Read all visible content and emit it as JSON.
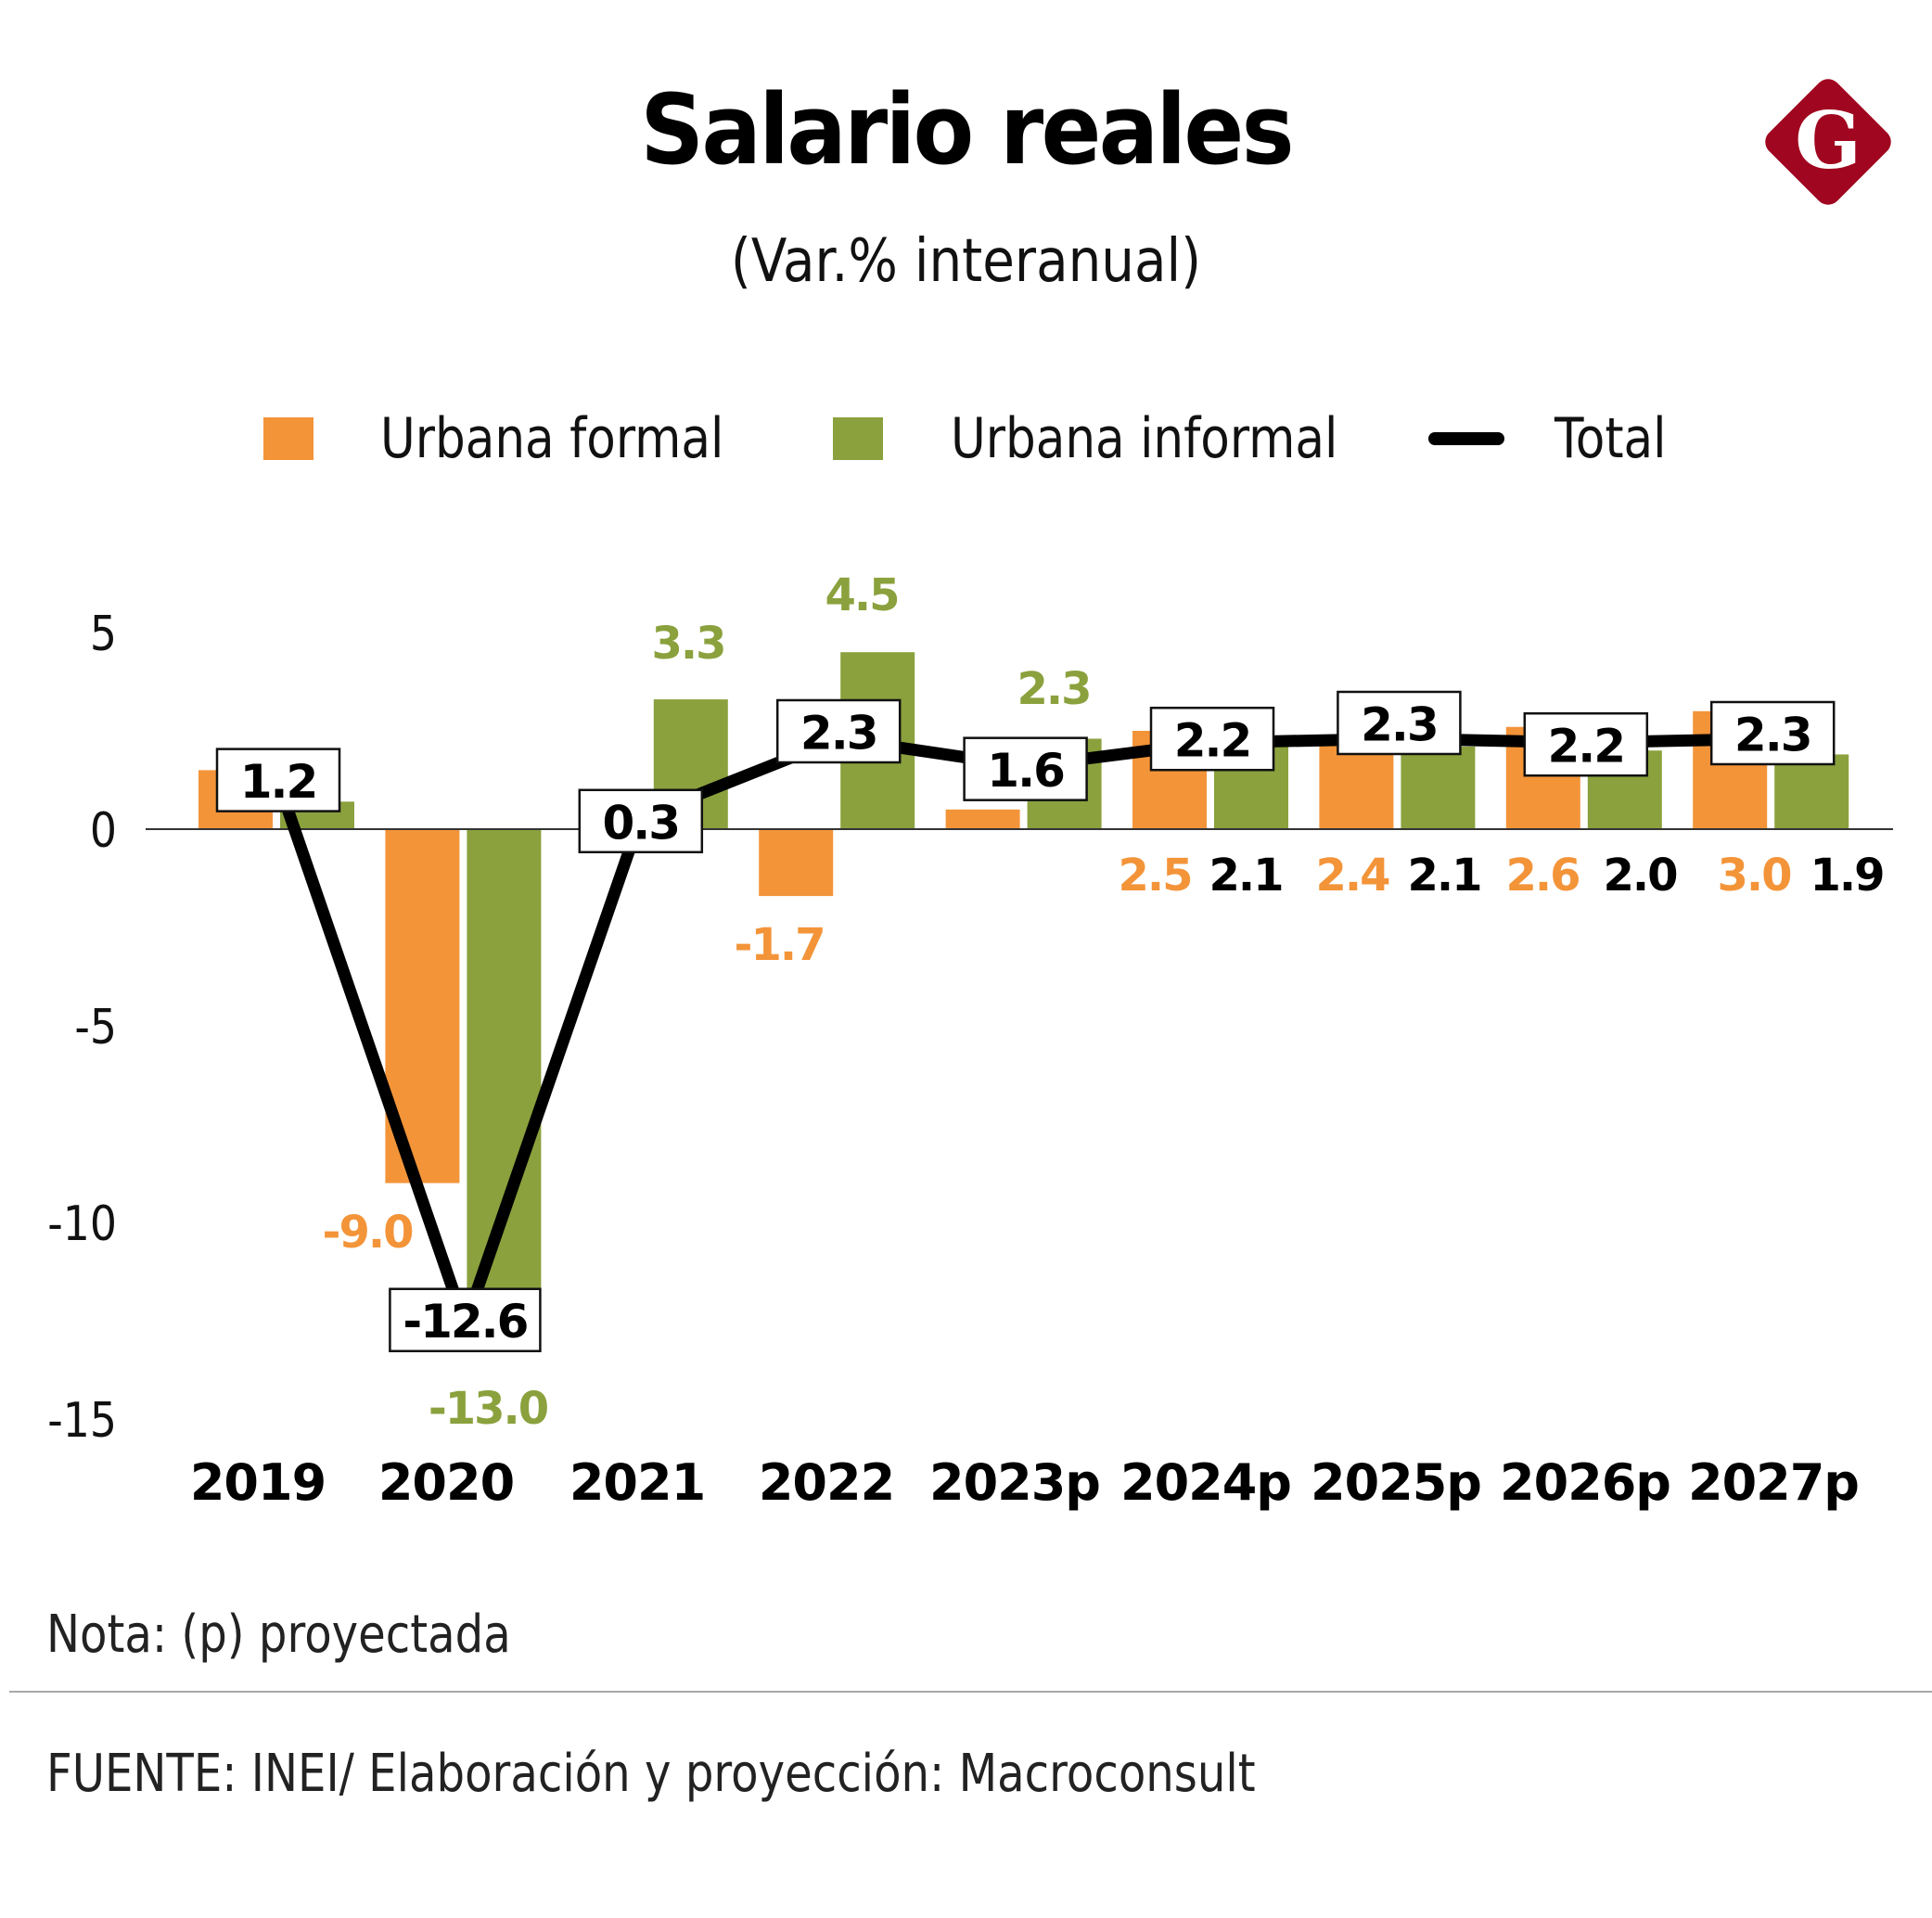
{
  "header": {
    "title": "Salario reales",
    "subtitle": "(Var.% interanual)",
    "logo_letter": "G",
    "logo_color": "#a0061f"
  },
  "legend": [
    {
      "label": "Urbana formal",
      "color": "#f39439",
      "kind": "bar"
    },
    {
      "label": "Urbana informal",
      "color": "#8aa13d",
      "kind": "bar"
    },
    {
      "label": "Total",
      "color": "#000000",
      "kind": "line"
    }
  ],
  "footer": {
    "note": "Nota: (p) proyectada",
    "source": "FUENTE: INEI/ Elaboración y proyección: Macroconsult"
  },
  "chart_data": {
    "type": "bar",
    "title": "Salario reales",
    "subtitle": "(Var.% interanual)",
    "xlabel": "",
    "ylabel": "",
    "ylim": [
      -15,
      5
    ],
    "yticks": [
      5,
      0,
      -5,
      -10,
      -15
    ],
    "ytick_labels": [
      "5",
      "0",
      "-5",
      "-10",
      "-15"
    ],
    "grid": false,
    "legend_position": "top",
    "categories": [
      "2019",
      "2020",
      "2021",
      "2022",
      "2023p",
      "2024p",
      "2025p",
      "2026p",
      "2027p"
    ],
    "series": [
      {
        "name": "Urbana formal",
        "type": "bar",
        "color": "#f39439",
        "values": [
          1.5,
          -9.0,
          0.0,
          -1.7,
          0.5,
          2.5,
          2.4,
          2.6,
          3.0
        ],
        "labels": [
          "",
          "-9.0",
          "",
          "-1.7",
          "",
          "2.5",
          "2.4",
          "2.6",
          "3.0"
        ]
      },
      {
        "name": "Urbana informal",
        "type": "bar",
        "color": "#8aa13d",
        "values": [
          0.7,
          -13.0,
          3.3,
          4.5,
          2.3,
          2.1,
          2.1,
          2.0,
          1.9
        ],
        "labels": [
          "",
          "-13.0",
          "3.3",
          "4.5",
          "2.3",
          "2.1",
          "2.1",
          "2.0",
          "1.9"
        ]
      },
      {
        "name": "Total",
        "type": "line",
        "color": "#000000",
        "values": [
          1.2,
          -12.6,
          0.3,
          2.3,
          1.6,
          2.2,
          2.3,
          2.2,
          2.3
        ],
        "labels": [
          "1.2",
          "-12.6",
          "0.3",
          "2.3",
          "1.6",
          "2.2",
          "2.3",
          "2.2",
          "2.3"
        ]
      }
    ],
    "annotations": [
      "Nota: (p) proyectada"
    ]
  }
}
